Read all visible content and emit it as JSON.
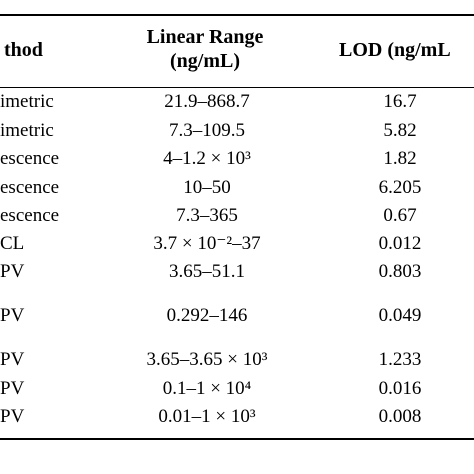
{
  "table": {
    "headers": {
      "method": "thod",
      "range_line1": "Linear Range",
      "range_line2": "(ng/mL)",
      "lod": "LOD (ng/mL"
    },
    "rows": [
      {
        "method": "imetric",
        "range": "21.9–868.7",
        "lod": "16.7"
      },
      {
        "method": "imetric",
        "range": "7.3–109.5",
        "lod": "5.82"
      },
      {
        "method": "escence",
        "range": "4–1.2 × 10³",
        "lod": "1.82"
      },
      {
        "method": "escence",
        "range": "10–50",
        "lod": "6.205"
      },
      {
        "method": "escence",
        "range": "7.3–365",
        "lod": "0.67"
      },
      {
        "method": "CL",
        "range": "3.7 × 10⁻²–37",
        "lod": "0.012"
      },
      {
        "method": "PV",
        "range": "3.65–51.1",
        "lod": "0.803"
      },
      {
        "method": "PV",
        "range": "0.292–146",
        "lod": "0.049"
      },
      {
        "method": "PV",
        "range": "3.65–3.65 × 10³",
        "lod": "1.233"
      },
      {
        "method": "PV",
        "range": "0.1–1 × 10⁴",
        "lod": "0.016"
      },
      {
        "method": "PV",
        "range": "0.01–1 × 10³",
        "lod": "0.008"
      }
    ]
  }
}
